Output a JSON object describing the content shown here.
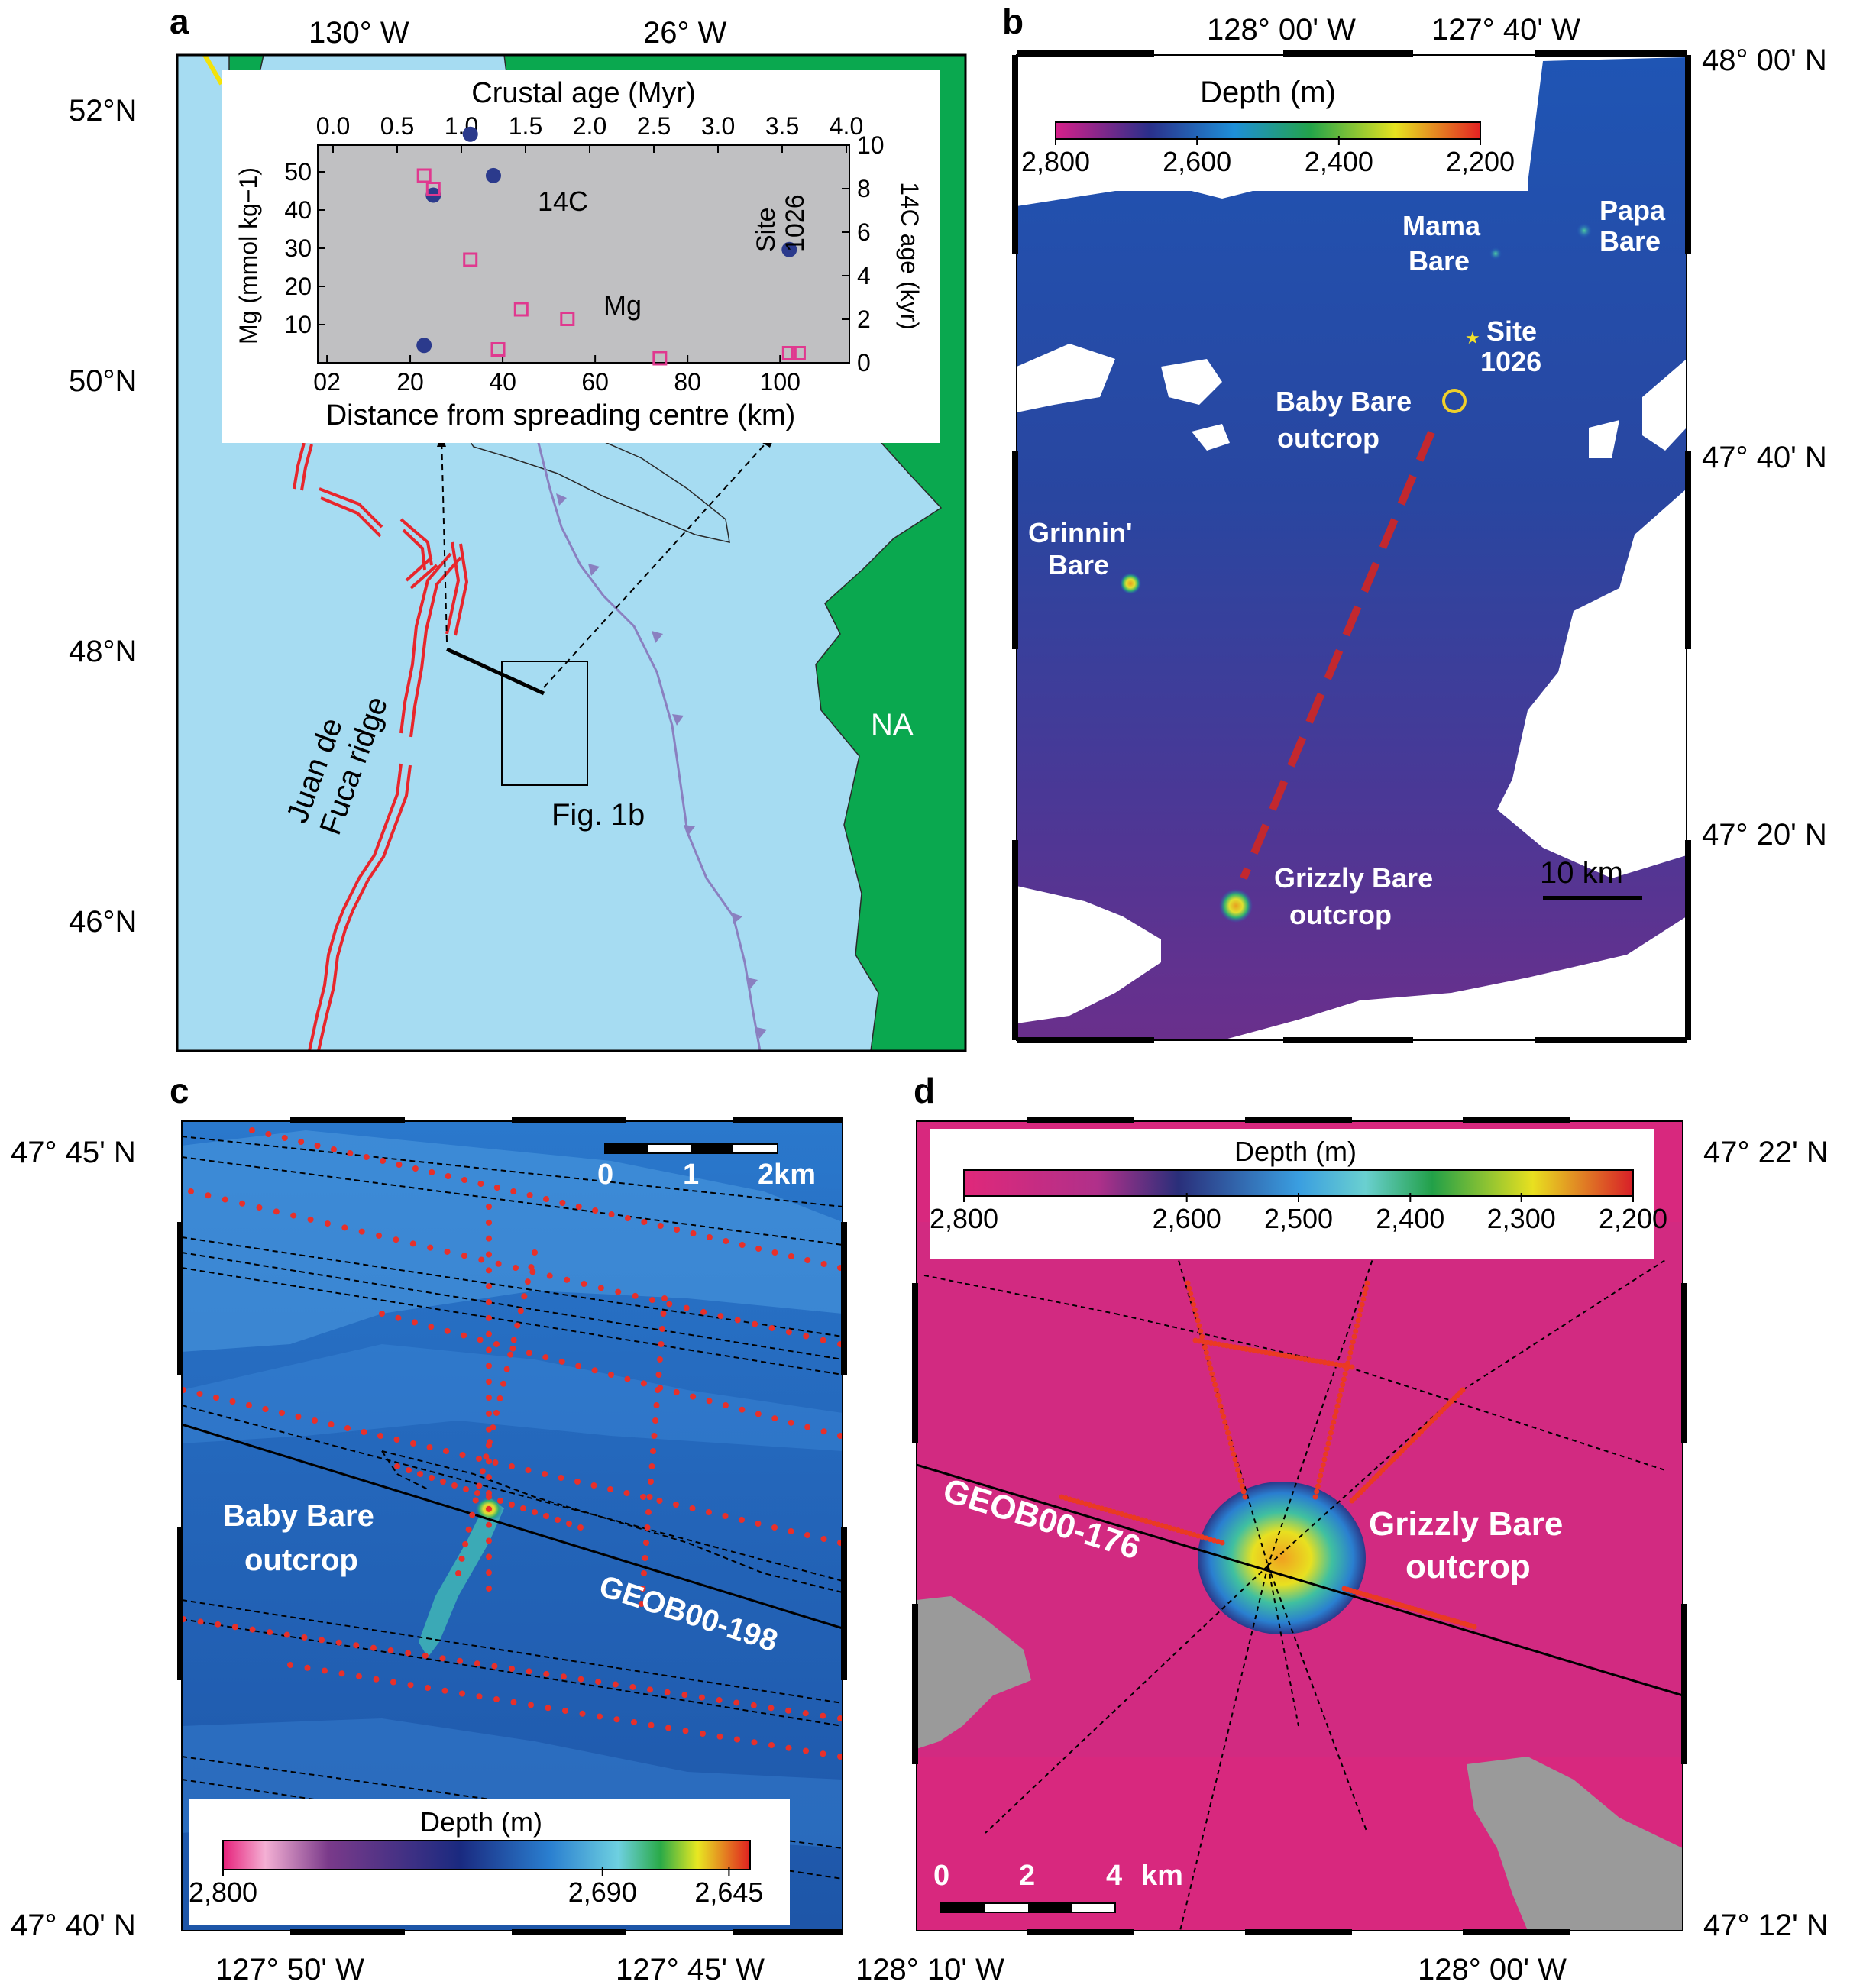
{
  "panels": {
    "a": {
      "letter": "a",
      "top_lon_labels": [
        "130° W",
        "26° W"
      ],
      "lat_labels": [
        "52°N",
        "50°N",
        "48°N",
        "46°N"
      ],
      "ridge_label": [
        "Juan de",
        "Fuca ridge"
      ],
      "na_label": "NA",
      "fig_ref": "Fig. 1b",
      "inset": {
        "top_title": "Crustal age (Myr)",
        "top_ticks": [
          "0.0",
          "0.5",
          "1.0",
          "1.5",
          "2.0",
          "2.5",
          "3.0",
          "3.5",
          "4.0"
        ],
        "bottom_title": "Distance from spreading centre (km)",
        "bottom_ticks": [
          "02",
          "20",
          "40",
          "60",
          "80",
          "100"
        ],
        "left_label": "Mg (mmol kg−1)",
        "left_ticks": [
          "10",
          "20",
          "30",
          "40",
          "50"
        ],
        "right_label": "14C age (kyr)",
        "right_ticks": [
          "0",
          "2",
          "4",
          "6",
          "8",
          "10"
        ],
        "label_c14": "14C",
        "label_mg": "Mg",
        "site_label": [
          "Site",
          "1026"
        ]
      }
    },
    "b": {
      "letter": "b",
      "top_lon_labels": [
        "128° 00' W",
        "127° 40' W"
      ],
      "right_lat_labels": [
        "48° 00' N",
        "47° 40' N",
        "47° 20' N"
      ],
      "colorbar_title": "Depth (m)",
      "colorbar_ticks": [
        "2,800",
        "2,600",
        "2,400",
        "2,200"
      ],
      "features": {
        "mama": [
          "Mama",
          "Bare"
        ],
        "papa": [
          "Papa",
          "Bare"
        ],
        "site": [
          "Site",
          "1026"
        ],
        "baby": [
          "Baby Bare",
          "outcrop"
        ],
        "grinnin": [
          "Grinnin'",
          "Bare"
        ],
        "grizzly": [
          "Grizzly Bare",
          "outcrop"
        ]
      },
      "scale_label": "10 km"
    },
    "c": {
      "letter": "c",
      "left_lat_labels": [
        "47° 45' N",
        "47° 40' N"
      ],
      "bottom_lon_labels": [
        "127° 50' W",
        "127° 45' W"
      ],
      "scale_ticks": [
        "0",
        "1",
        "2km"
      ],
      "outcrop_label": [
        "Baby Bare",
        "outcrop"
      ],
      "line_label": "GEOB00-198",
      "colorbar_title": "Depth (m)",
      "colorbar_ticks": [
        "2,800",
        "2,690",
        "2,645"
      ]
    },
    "d": {
      "letter": "d",
      "right_lat_labels": [
        "47° 22' N",
        "47° 12' N"
      ],
      "bottom_lon_labels": [
        "128° 10' W",
        "128° 00' W"
      ],
      "colorbar_title": "Depth (m)",
      "colorbar_ticks": [
        "2,800",
        "2,600",
        "2,500",
        "2,400",
        "2,300",
        "2,200"
      ],
      "outcrop_label": [
        "Grizzly Bare",
        "outcrop"
      ],
      "line_label": "GEOB00-176",
      "scale_ticks": [
        "0",
        "2",
        "4",
        "km"
      ]
    }
  },
  "chart_data": {
    "type": "scatter",
    "xlabel": "Distance from spreading centre (km)",
    "ylabel": "Mg (mmol kg−1)",
    "y2label": "14C age (kyr)",
    "x2label": "Crustal age (Myr)",
    "xlim": [
      0,
      115
    ],
    "ylim": [
      0,
      57
    ],
    "y2lim": [
      0,
      10
    ],
    "x2lim": [
      0,
      4.0
    ],
    "series": [
      {
        "name": "14C",
        "marker": "filled-circle",
        "color": "#2b3a8c",
        "axis": "y2",
        "points": [
          [
            33,
            10.5
          ],
          [
            38,
            8.6
          ],
          [
            25,
            7.7
          ],
          [
            102,
            5.2
          ],
          [
            23,
            0.8
          ]
        ]
      },
      {
        "name": "Mg",
        "marker": "open-square",
        "color": "#e0398f",
        "axis": "y",
        "points": [
          [
            23,
            49
          ],
          [
            25,
            45.5
          ],
          [
            33,
            27
          ],
          [
            44,
            14
          ],
          [
            54,
            11.5
          ],
          [
            39,
            3.5
          ],
          [
            74,
            1.2
          ],
          [
            102,
            2.5
          ],
          [
            104,
            2.5
          ]
        ]
      }
    ]
  },
  "colors": {
    "ocean": "#a6dcf2",
    "land": "#0aa84f",
    "ridge": "#e8262c",
    "trench": "#8a80c0",
    "inset_bg": "#c0c0c2",
    "mg": "#e0398f",
    "c14": "#2b3a8c",
    "survey_dots": "#e8302a"
  }
}
